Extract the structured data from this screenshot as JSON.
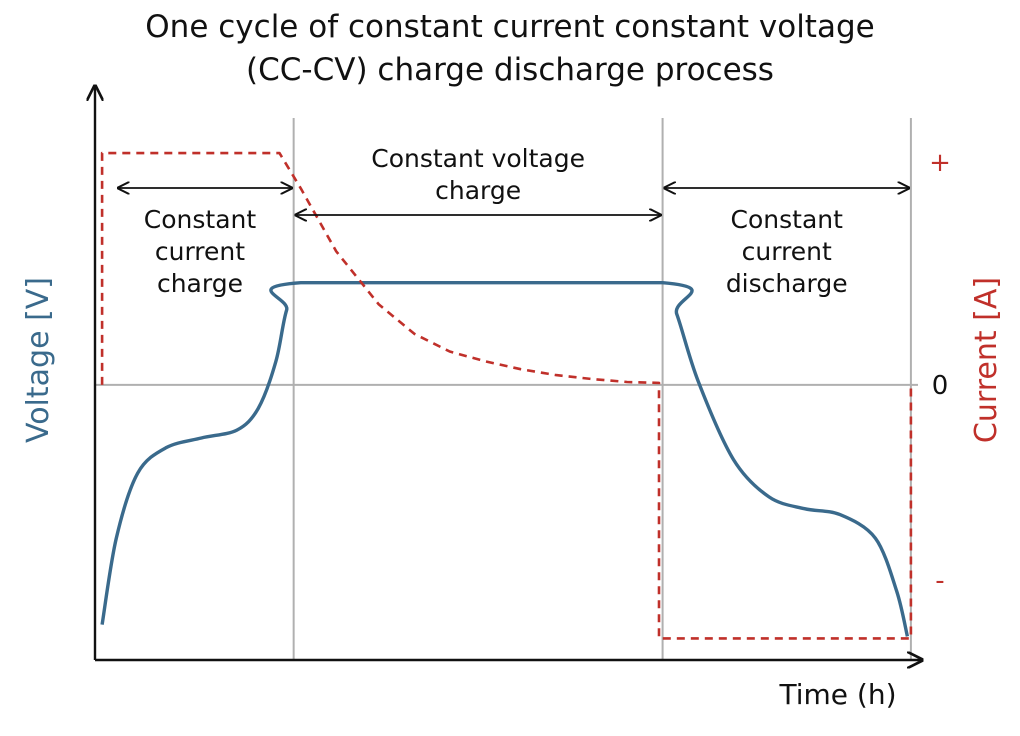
{
  "chart_data": {
    "type": "line",
    "title": [
      "One cycle of constant current constant voltage",
      "(CC-CV) charge discharge process"
    ],
    "xlabel": "Time (h)",
    "ylabel_left": "Voltage [V]",
    "ylabel_right": "Current [A]",
    "right_ticks": [
      {
        "label": "+",
        "value": 1
      },
      {
        "label": "0",
        "value": 0
      },
      {
        "label": "-",
        "value": -1
      }
    ],
    "phases": [
      {
        "lines": [
          "Constant",
          "current",
          "charge"
        ],
        "start": 0.3,
        "end": 2.8
      },
      {
        "lines": [
          "Constant voltage",
          "charge"
        ],
        "start": 2.8,
        "end": 8.0
      },
      {
        "lines": [
          "Constant",
          "current",
          "discharge"
        ],
        "start": 8.0,
        "end": 11.5
      }
    ],
    "phase_boundaries": [
      2.8,
      8.0,
      11.5
    ],
    "series": [
      {
        "name": "Voltage [V]",
        "color": "#3a6a8c",
        "style": "solid",
        "points": [
          [
            0.1,
            -1.22
          ],
          [
            0.3,
            -0.78
          ],
          [
            0.6,
            -0.45
          ],
          [
            1.0,
            -0.32
          ],
          [
            1.5,
            -0.27
          ],
          [
            2.0,
            -0.23
          ],
          [
            2.3,
            -0.12
          ],
          [
            2.55,
            0.12
          ],
          [
            2.7,
            0.38
          ],
          [
            2.9,
            0.52
          ],
          [
            8.0,
            0.52
          ],
          [
            8.2,
            0.36
          ],
          [
            8.5,
            0.02
          ],
          [
            9.0,
            -0.38
          ],
          [
            9.5,
            -0.57
          ],
          [
            10.0,
            -0.63
          ],
          [
            10.5,
            -0.66
          ],
          [
            11.0,
            -0.78
          ],
          [
            11.3,
            -1.05
          ],
          [
            11.45,
            -1.28
          ]
        ]
      },
      {
        "name": "Current [A]",
        "color": "#c0302a",
        "style": "dashed",
        "points": [
          [
            0.1,
            0
          ],
          [
            0.1,
            1.18
          ],
          [
            2.6,
            1.18
          ],
          [
            2.9,
            1.0
          ],
          [
            3.4,
            0.68
          ],
          [
            4.0,
            0.41
          ],
          [
            4.5,
            0.26
          ],
          [
            5.0,
            0.17
          ],
          [
            5.5,
            0.12
          ],
          [
            6.0,
            0.08
          ],
          [
            6.5,
            0.05
          ],
          [
            7.0,
            0.03
          ],
          [
            7.5,
            0.015
          ],
          [
            7.95,
            0.01
          ],
          [
            7.95,
            -1.29
          ],
          [
            11.5,
            -1.29
          ],
          [
            11.5,
            0
          ]
        ]
      }
    ],
    "xlim": [
      0,
      11.6
    ],
    "ylim": [
      -1.4,
      1.45
    ],
    "colors": {
      "voltage": "#3a6a8c",
      "current": "#c0302a",
      "grid": "#b0b0b0",
      "axis": "#111111"
    }
  }
}
